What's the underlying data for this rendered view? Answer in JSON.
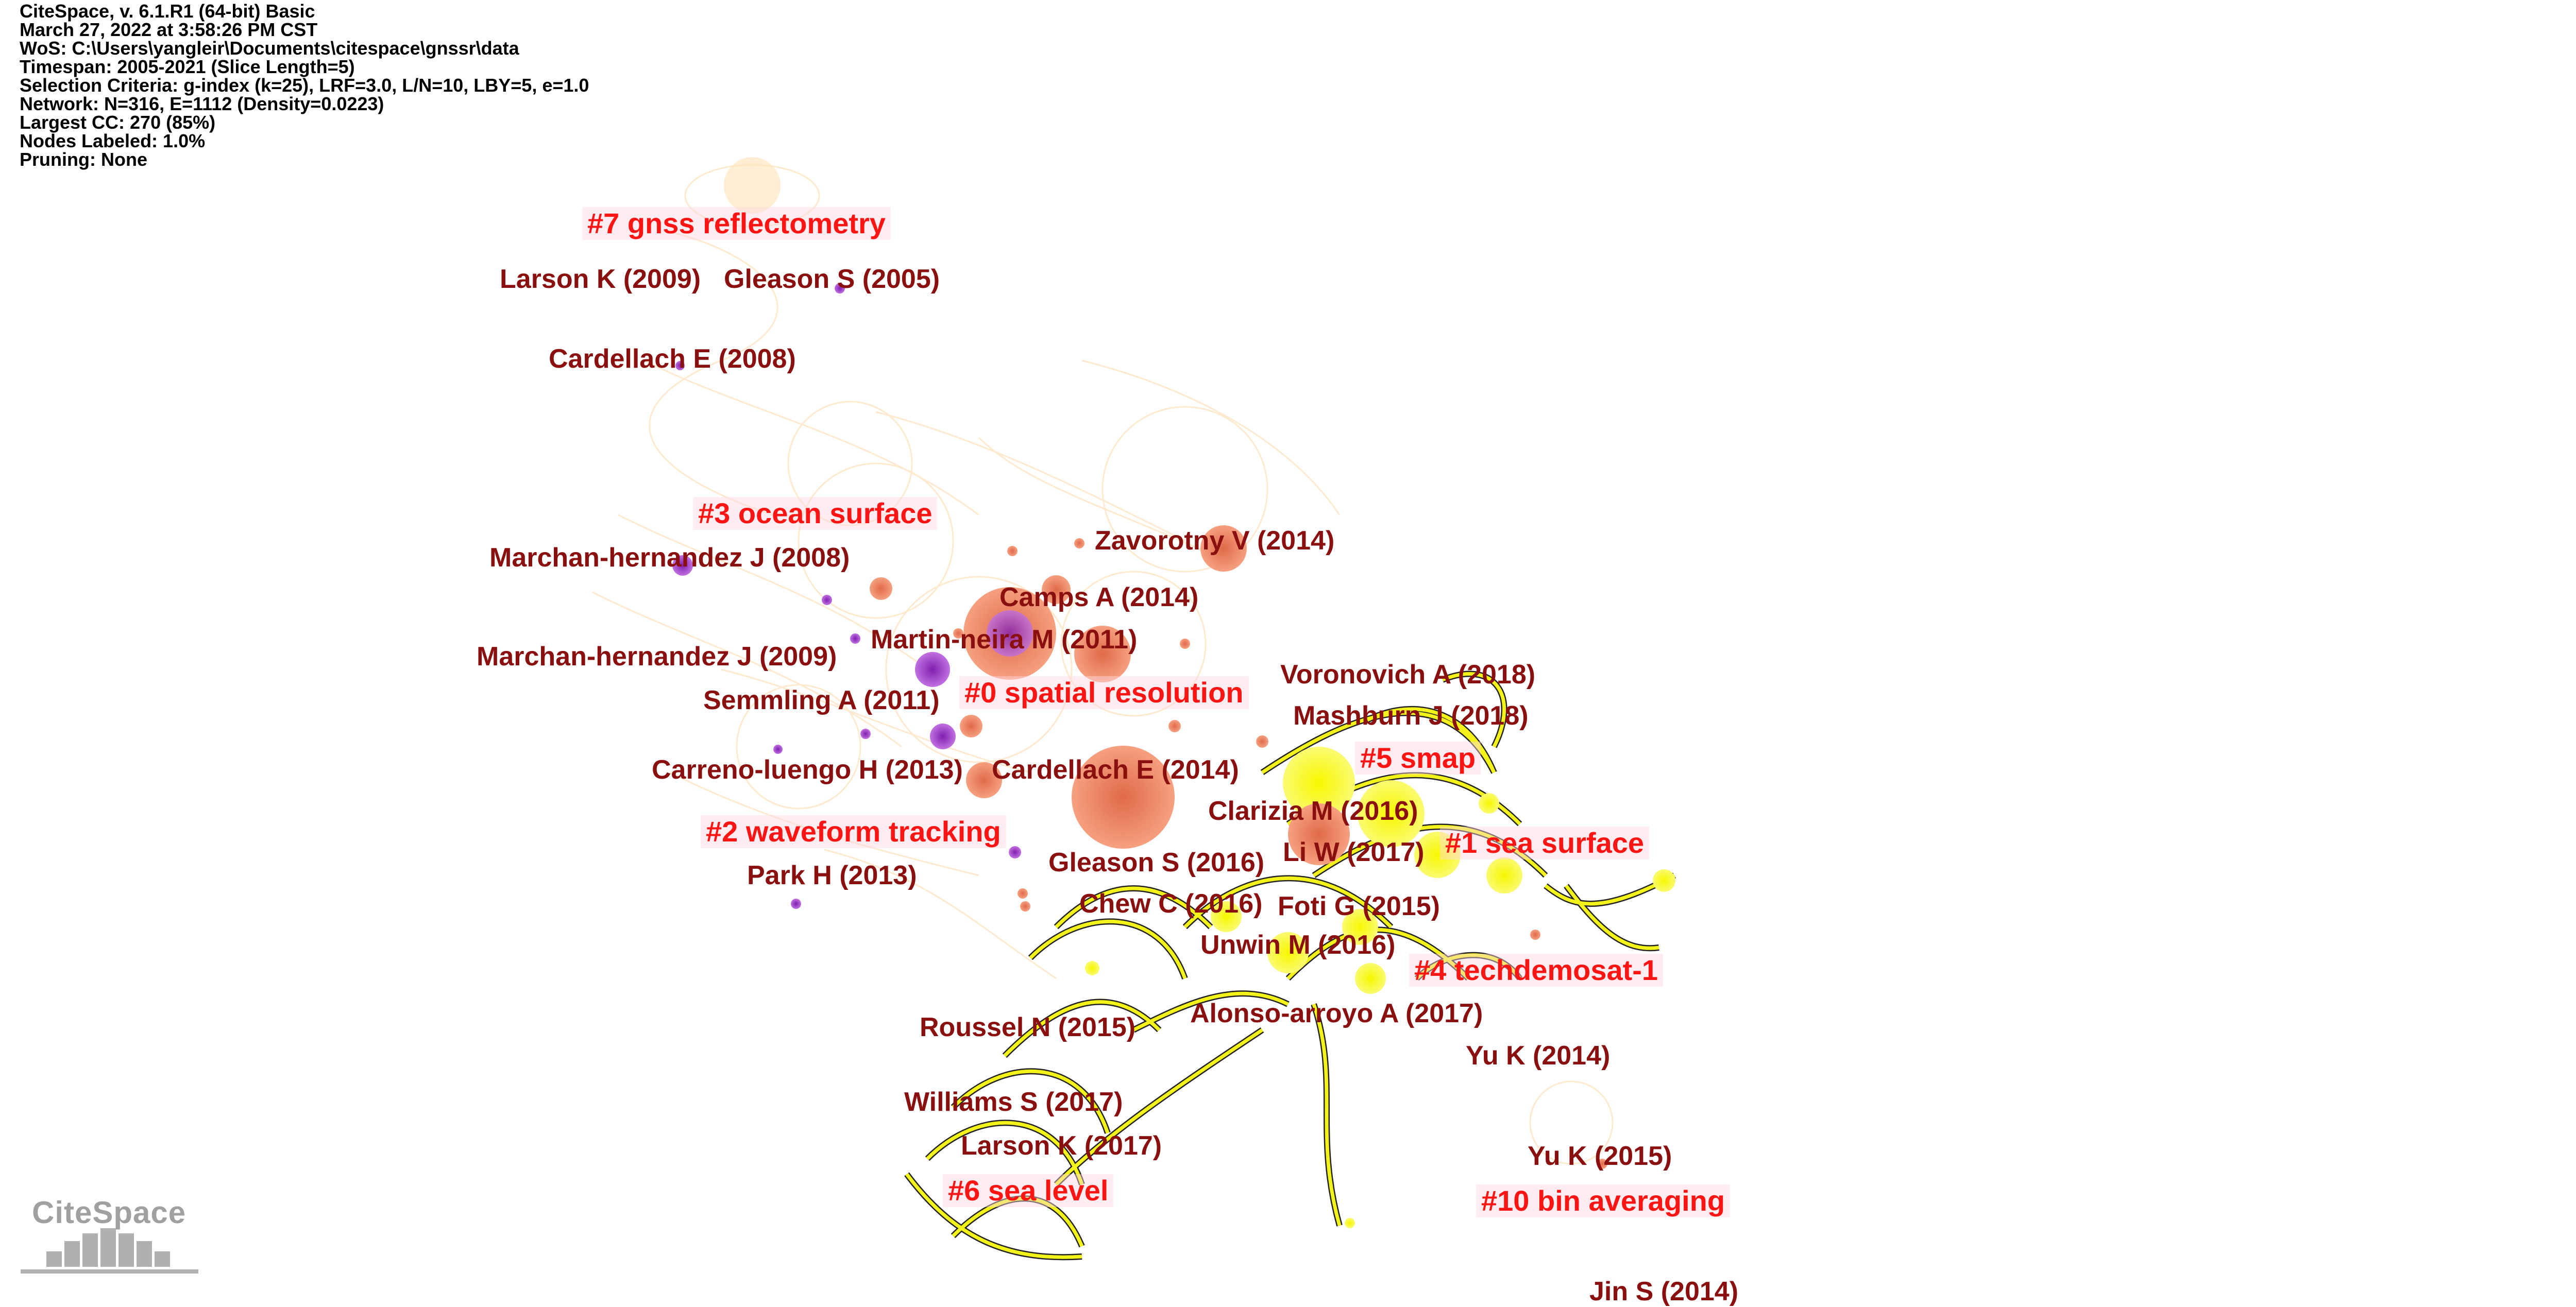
{
  "header_info": [
    "CiteSpace, v. 6.1.R1 (64-bit) Basic",
    "March 27, 2022 at 3:58:26 PM CST",
    "WoS: C:\\Users\\yangleir\\Documents\\citespace\\gnssr\\data",
    "Timespan: 2005-2021 (Slice Length=5)",
    "Selection Criteria: g-index (k=25), LRF=3.0, L/N=10, LBY=5, e=1.0",
    "Network: N=316, E=1112 (Density=0.0223)",
    "Largest CC: 270 (85%)",
    "Nodes Labeled: 1.0%",
    "Pruning: None"
  ],
  "cluster_labels": [
    "#7 gnss reflectometry",
    "#3 ocean surface",
    "#0 spatial resolution",
    "#5 smap",
    "#1 sea surface",
    "#2 waveform tracking",
    "#4 techdemosat-1",
    "#6 sea level",
    "#10 bin averaging"
  ],
  "reference_labels": [
    "Larson K (2009)",
    "Gleason S (2005)",
    "Cardellach E (2008)",
    "Marchan-hernandez J (2008)",
    "Zavorotny V (2014)",
    "Camps A (2014)",
    "Martin-neira M (2011)",
    "Marchan-hernandez J (2009)",
    "Semmling A (2011)",
    "Voronovich A (2018)",
    "Mashburn J (2018)",
    "Carreno-luengo H (2013)",
    "Cardellach E (2014)",
    "Clarizia M (2016)",
    "Li W (2017)",
    "Gleason S (2016)",
    "Chew C (2016)",
    "Foti G (2015)",
    "Park H (2013)",
    "Unwin M (2016)",
    "Alonso-arroyo A (2017)",
    "Roussel N (2015)",
    "Yu K (2014)",
    "Williams S (2017)",
    "Larson K (2017)",
    "Yu K (2015)",
    "Jin S (2014)"
  ],
  "logo": "CiteSpace",
  "colors": {
    "cluster_label": "#ff1414",
    "reference_label": "#8a1010",
    "recent_yellow": "#f0f020",
    "burst_orange": "#f08a6a",
    "centrality_purple": "#a030c0"
  }
}
